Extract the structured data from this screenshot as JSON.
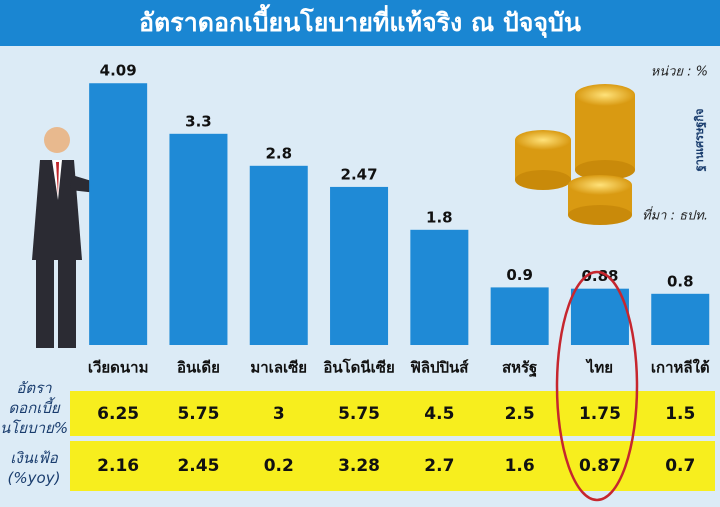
{
  "chart_data": {
    "type": "bar",
    "title": "อัตราดอกเบี้ยนโยบายที่แท้จริง ณ ปัจจุบัน",
    "unit_note": "หน่วย : %",
    "source": "ที่มา : ธปท.",
    "logo": "ฐานเศรษฐกิจ",
    "categories": [
      "เวียดนาม",
      "อินเดีย",
      "มาเลเซีย",
      "อินโดนีเซีย",
      "ฟิลิปปินส์",
      "สหรัฐ",
      "ไทย",
      "เกาหลีใต้"
    ],
    "values": [
      4.09,
      3.3,
      2.8,
      2.47,
      1.8,
      0.9,
      0.88,
      0.8
    ],
    "color": "#1f8ad6",
    "table": {
      "rows": [
        {
          "label": "อัตราดอกเบี้ยนโยบาย%",
          "values": [
            6.25,
            5.75,
            3,
            5.75,
            4.5,
            2.5,
            1.75,
            1.5
          ]
        },
        {
          "label": "เงินเฟ้อ (%yoy)",
          "values": [
            2.16,
            2.45,
            0.2,
            3.28,
            2.7,
            1.6,
            0.87,
            0.7
          ]
        }
      ]
    }
  }
}
